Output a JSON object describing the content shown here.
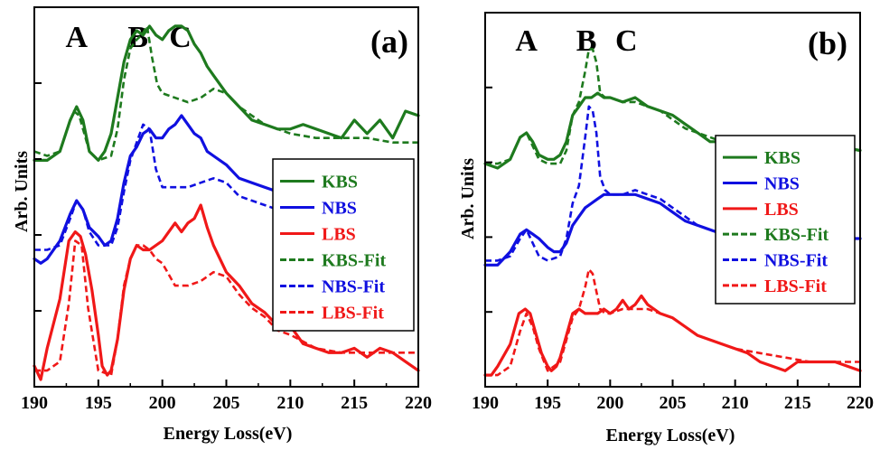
{
  "colors": {
    "green": "#1e7a1e",
    "blue": "#1010e0",
    "red": "#f01818",
    "axis": "#000000"
  },
  "chart_data": [
    {
      "type": "line",
      "panel_label": "(a)",
      "peak_labels": [
        "A",
        "B",
        "C"
      ],
      "peak_positions": [
        193.3,
        198.1,
        201.4
      ],
      "xlabel": "Energy Loss(eV)",
      "ylabel": "Arb. Units",
      "xlim": [
        190,
        220
      ],
      "ylim": [
        0,
        4
      ],
      "x_ticks": [
        "190",
        "195",
        "200",
        "205",
        "210",
        "215",
        "220"
      ],
      "legend": {
        "placement": "right",
        "entries": [
          "KBS",
          "NBS",
          "LBS",
          "KBS-Fit",
          "NBS-Fit",
          "LBS-Fit"
        ]
      },
      "series": [
        {
          "name": "KBS",
          "style": "solid",
          "color": "#1e7a1e",
          "x": [
            190,
            191,
            192,
            192.8,
            193.3,
            193.8,
            194.3,
            195,
            195.5,
            196,
            196.5,
            197,
            197.5,
            198,
            198.5,
            199,
            199.5,
            200,
            200.5,
            201,
            201.5,
            202,
            202.5,
            203,
            203.5,
            204,
            205,
            206,
            207,
            208,
            209,
            210,
            211,
            212,
            213,
            214,
            215,
            216,
            217,
            218,
            219,
            220
          ],
          "y": [
            2.45,
            2.45,
            2.55,
            2.9,
            3.05,
            2.9,
            2.55,
            2.45,
            2.55,
            2.75,
            3.15,
            3.55,
            3.8,
            3.9,
            3.85,
            3.95,
            3.85,
            3.8,
            3.9,
            3.95,
            3.95,
            3.9,
            3.75,
            3.65,
            3.5,
            3.4,
            3.2,
            3.05,
            2.9,
            2.85,
            2.8,
            2.8,
            2.85,
            2.8,
            2.75,
            2.7,
            2.9,
            2.75,
            2.9,
            2.7,
            3.0,
            2.95
          ]
        },
        {
          "name": "NBS",
          "style": "solid",
          "color": "#1010e0",
          "x": [
            190,
            190.5,
            191,
            192,
            192.8,
            193.3,
            193.8,
            194.3,
            195,
            195.5,
            196,
            196.5,
            197,
            197.5,
            198,
            198.5,
            199,
            199.5,
            200,
            200.5,
            201,
            201.5,
            202,
            202.5,
            203,
            203.5,
            204,
            205,
            206,
            207,
            208,
            209,
            210
          ],
          "y": [
            1.35,
            1.3,
            1.35,
            1.55,
            1.85,
            2.0,
            1.9,
            1.7,
            1.6,
            1.5,
            1.55,
            1.8,
            2.2,
            2.5,
            2.6,
            2.75,
            2.8,
            2.7,
            2.7,
            2.8,
            2.85,
            2.95,
            2.85,
            2.75,
            2.7,
            2.55,
            2.5,
            2.4,
            2.25,
            2.2,
            2.15,
            2.1,
            2.05
          ]
        },
        {
          "name": "LBS",
          "style": "solid",
          "color": "#f01818",
          "x": [
            190,
            190.5,
            191,
            192,
            192.7,
            193.2,
            193.6,
            194,
            194.5,
            195,
            195.3,
            195.7,
            196,
            196.5,
            197,
            197.5,
            198,
            198.5,
            199,
            199.5,
            200,
            200.5,
            201,
            201.5,
            202,
            202.5,
            203,
            203.5,
            204,
            205,
            206,
            207,
            208,
            209,
            210,
            211,
            212,
            213,
            214,
            215,
            216,
            217,
            218,
            219,
            220
          ],
          "y": [
            0.15,
            0.0,
            0.35,
            0.9,
            1.55,
            1.65,
            1.6,
            1.4,
            1.0,
            0.5,
            0.15,
            0.05,
            0.1,
            0.45,
            1.0,
            1.35,
            1.5,
            1.45,
            1.45,
            1.5,
            1.55,
            1.65,
            1.75,
            1.65,
            1.75,
            1.8,
            1.95,
            1.7,
            1.5,
            1.2,
            1.05,
            0.85,
            0.75,
            0.6,
            0.6,
            0.4,
            0.35,
            0.3,
            0.3,
            0.35,
            0.25,
            0.35,
            0.3,
            0.2,
            0.1
          ]
        },
        {
          "name": "KBS-Fit",
          "style": "dashed",
          "color": "#1e7a1e",
          "x": [
            190,
            191,
            192,
            192.7,
            193.1,
            193.5,
            193.9,
            194.3,
            195,
            196,
            196.5,
            197,
            197.5,
            198,
            198.4,
            198.8,
            199.2,
            199.6,
            200,
            201,
            202,
            203,
            204,
            205,
            206,
            207,
            208,
            209,
            210,
            212,
            214,
            216,
            218,
            220
          ],
          "y": [
            2.55,
            2.5,
            2.55,
            2.85,
            3.0,
            2.95,
            2.75,
            2.55,
            2.45,
            2.5,
            2.8,
            3.35,
            3.7,
            3.8,
            3.85,
            3.95,
            3.6,
            3.3,
            3.2,
            3.15,
            3.1,
            3.15,
            3.25,
            3.2,
            3.05,
            2.95,
            2.85,
            2.8,
            2.75,
            2.7,
            2.7,
            2.7,
            2.65,
            2.65
          ]
        },
        {
          "name": "NBS-Fit",
          "style": "dashed",
          "color": "#1010e0",
          "x": [
            190,
            191,
            192,
            192.8,
            193.3,
            193.8,
            194.3,
            195,
            196,
            196.5,
            197,
            197.5,
            198,
            198.5,
            199,
            199.5,
            200,
            201,
            202,
            203,
            204,
            205,
            206,
            207,
            208,
            209,
            210
          ],
          "y": [
            1.45,
            1.45,
            1.5,
            1.8,
            2.0,
            1.9,
            1.65,
            1.5,
            1.5,
            1.7,
            2.1,
            2.45,
            2.65,
            2.85,
            2.8,
            2.35,
            2.15,
            2.15,
            2.15,
            2.2,
            2.25,
            2.2,
            2.05,
            2.0,
            1.95,
            1.9,
            1.9
          ]
        },
        {
          "name": "LBS-Fit",
          "style": "dashed",
          "color": "#f01818",
          "x": [
            190,
            191,
            192,
            192.7,
            193.2,
            193.7,
            194.2,
            195,
            196,
            196.5,
            197,
            197.5,
            198,
            198.5,
            199,
            199.5,
            200,
            201,
            202,
            203,
            204,
            205,
            206,
            207,
            208,
            209,
            210,
            212,
            214,
            216,
            218,
            220
          ],
          "y": [
            0.1,
            0.1,
            0.2,
            0.85,
            1.55,
            1.5,
            0.8,
            0.1,
            0.05,
            0.45,
            1.05,
            1.35,
            1.5,
            1.5,
            1.45,
            1.35,
            1.3,
            1.05,
            1.05,
            1.1,
            1.2,
            1.15,
            0.95,
            0.8,
            0.7,
            0.55,
            0.5,
            0.35,
            0.3,
            0.3,
            0.3,
            0.3
          ]
        }
      ]
    },
    {
      "type": "line",
      "panel_label": "(b)",
      "peak_labels": [
        "A",
        "B",
        "C"
      ],
      "peak_positions": [
        193.3,
        198.1,
        201.3
      ],
      "xlabel": "Energy Loss(eV)",
      "ylabel": "Arb. Units",
      "xlim": [
        190,
        220
      ],
      "ylim": [
        0,
        4
      ],
      "x_ticks": [
        "190",
        "195",
        "200",
        "205",
        "210",
        "215",
        "220"
      ],
      "legend": {
        "placement": "right",
        "entries": [
          "KBS",
          "NBS",
          "LBS",
          "KBS-Fit",
          "NBS-Fit",
          "LBS-Fit"
        ]
      },
      "series": [
        {
          "name": "KBS",
          "style": "solid",
          "color": "#1e7a1e",
          "x": [
            190,
            191,
            192,
            192.8,
            193.3,
            193.8,
            194.3,
            195,
            195.5,
            196,
            196.5,
            197,
            197.5,
            198,
            198.5,
            199,
            199.5,
            200,
            201,
            202,
            203,
            204,
            205,
            206,
            207,
            208,
            209,
            210,
            212,
            214,
            216,
            218,
            220
          ],
          "y": [
            2.45,
            2.4,
            2.5,
            2.75,
            2.8,
            2.7,
            2.55,
            2.5,
            2.5,
            2.55,
            2.7,
            3.0,
            3.1,
            3.2,
            3.2,
            3.25,
            3.2,
            3.2,
            3.15,
            3.2,
            3.1,
            3.05,
            3.0,
            2.9,
            2.8,
            2.7,
            2.7,
            2.65,
            2.65,
            2.65,
            2.65,
            2.65,
            2.6
          ]
        },
        {
          "name": "NBS",
          "style": "solid",
          "color": "#1010e0",
          "x": [
            190,
            190.5,
            191,
            192,
            192.8,
            193.3,
            193.8,
            194.3,
            195,
            195.5,
            196,
            196.5,
            197,
            197.5,
            198,
            198.5,
            199,
            199.5,
            200,
            201,
            202,
            203,
            204,
            205,
            206,
            207,
            208,
            209,
            210,
            212,
            214,
            216,
            218,
            220
          ],
          "y": [
            1.3,
            1.3,
            1.3,
            1.45,
            1.65,
            1.7,
            1.65,
            1.6,
            1.5,
            1.45,
            1.45,
            1.55,
            1.75,
            1.85,
            1.95,
            2.0,
            2.05,
            2.1,
            2.1,
            2.1,
            2.1,
            2.05,
            2.0,
            1.9,
            1.8,
            1.75,
            1.7,
            1.65,
            1.6,
            1.6,
            1.6,
            1.6,
            1.6,
            1.6
          ]
        },
        {
          "name": "LBS",
          "style": "solid",
          "color": "#f01818",
          "x": [
            190,
            190.5,
            191,
            192,
            192.7,
            193.2,
            193.6,
            194,
            194.5,
            195,
            195.3,
            195.7,
            196,
            196.5,
            197,
            197.5,
            198,
            198.5,
            199,
            199.5,
            200,
            200.5,
            201,
            201.5,
            202,
            202.5,
            203,
            203.5,
            204,
            205,
            206,
            207,
            208,
            209,
            210,
            211,
            212,
            213,
            214,
            215,
            216,
            217,
            218,
            219,
            220
          ],
          "y": [
            0.05,
            0.05,
            0.15,
            0.4,
            0.75,
            0.8,
            0.75,
            0.55,
            0.3,
            0.15,
            0.1,
            0.15,
            0.25,
            0.5,
            0.75,
            0.8,
            0.75,
            0.75,
            0.75,
            0.8,
            0.75,
            0.8,
            0.9,
            0.8,
            0.85,
            0.95,
            0.85,
            0.8,
            0.75,
            0.7,
            0.6,
            0.5,
            0.45,
            0.4,
            0.35,
            0.3,
            0.2,
            0.15,
            0.1,
            0.2,
            0.2,
            0.2,
            0.2,
            0.15,
            0.1
          ]
        },
        {
          "name": "KBS-Fit",
          "style": "dashed",
          "color": "#1e7a1e",
          "x": [
            190,
            191,
            192,
            192.8,
            193.3,
            193.8,
            194.3,
            195,
            196,
            196.5,
            197,
            197.5,
            198,
            198.3,
            198.6,
            198.9,
            199.2,
            199.6,
            200,
            201,
            202,
            203,
            204,
            205,
            206,
            207,
            208,
            209,
            210,
            212,
            214,
            216,
            218,
            220
          ],
          "y": [
            2.45,
            2.45,
            2.5,
            2.75,
            2.8,
            2.65,
            2.5,
            2.45,
            2.45,
            2.6,
            3.0,
            3.15,
            3.5,
            3.75,
            3.75,
            3.6,
            3.25,
            3.2,
            3.2,
            3.15,
            3.15,
            3.1,
            3.05,
            2.95,
            2.85,
            2.8,
            2.75,
            2.7,
            2.7,
            2.65,
            2.65,
            2.65,
            2.6,
            2.6
          ]
        },
        {
          "name": "NBS-Fit",
          "style": "dashed",
          "color": "#1010e0",
          "x": [
            190,
            191,
            192,
            192.8,
            193.3,
            193.8,
            194.3,
            195,
            196,
            196.5,
            197,
            197.5,
            198,
            198.3,
            198.6,
            198.9,
            199.2,
            199.6,
            200,
            201,
            202,
            203,
            204,
            205,
            206,
            207,
            208,
            209,
            210,
            212,
            214,
            216,
            218,
            220
          ],
          "y": [
            1.35,
            1.35,
            1.4,
            1.6,
            1.7,
            1.55,
            1.4,
            1.35,
            1.4,
            1.6,
            2.0,
            2.2,
            2.75,
            3.1,
            3.05,
            2.8,
            2.3,
            2.15,
            2.1,
            2.1,
            2.15,
            2.1,
            2.05,
            1.95,
            1.85,
            1.75,
            1.7,
            1.65,
            1.6,
            1.6,
            1.6,
            1.6,
            1.6,
            1.6
          ]
        },
        {
          "name": "LBS-Fit",
          "style": "dashed",
          "color": "#f01818",
          "x": [
            190,
            191,
            192,
            192.8,
            193.3,
            193.8,
            194.3,
            195,
            196,
            196.5,
            197,
            197.5,
            198,
            198.3,
            198.6,
            198.9,
            199.2,
            199.6,
            200,
            201,
            202,
            203,
            204,
            205,
            206,
            207,
            208,
            209,
            210,
            212,
            214,
            216,
            218,
            220
          ],
          "y": [
            0.05,
            0.05,
            0.15,
            0.55,
            0.75,
            0.6,
            0.35,
            0.1,
            0.2,
            0.45,
            0.7,
            0.8,
            1.05,
            1.25,
            1.2,
            1.0,
            0.8,
            0.75,
            0.75,
            0.8,
            0.8,
            0.8,
            0.75,
            0.7,
            0.6,
            0.5,
            0.45,
            0.4,
            0.35,
            0.3,
            0.25,
            0.2,
            0.2,
            0.2
          ]
        }
      ]
    }
  ]
}
